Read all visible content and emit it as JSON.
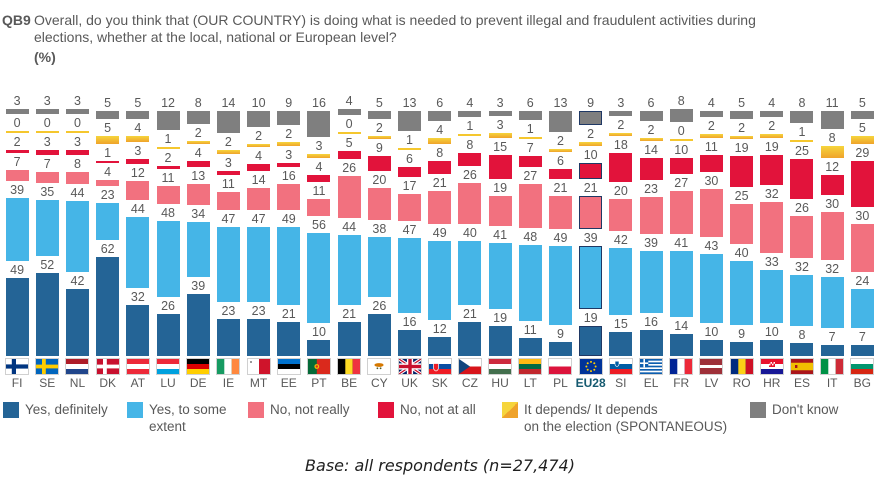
{
  "header": {
    "code": "QB9",
    "title": "Overall, do you think that (OUR COUNTRY) is doing what is needed to prevent illegal and fraudulent activities during\nelections, whether at the local, national or European level?",
    "unit": "(%)"
  },
  "footer": {
    "base_note": "Base: all respondents (n=27,474)"
  },
  "colors": {
    "yes_definitely": "#246496",
    "yes_to_some_extent": "#45B5E7",
    "no_not_really": "#F2717F",
    "no_not_at_all": "#E2133B",
    "depends_top": "#F6D53C",
    "depends_bottom": "#EFA32B",
    "dont_know": "#7F7F7F",
    "eu28_box_border": "#1F3864",
    "eu28_label": "#155A70",
    "value_label": "#595959"
  },
  "chart_data": {
    "type": "bar",
    "stacked": true,
    "unit": "%",
    "grid": false,
    "highlight_category": "EU28",
    "categories": [
      "FI",
      "SE",
      "NL",
      "DK",
      "AT",
      "LU",
      "DE",
      "IE",
      "MT",
      "EE",
      "PT",
      "BE",
      "CY",
      "UK",
      "SK",
      "CZ",
      "HU",
      "LT",
      "PL",
      "EU28",
      "SI",
      "EL",
      "FR",
      "LV",
      "RO",
      "HR",
      "ES",
      "IT",
      "BG"
    ],
    "series": [
      {
        "name": "Yes, definitely",
        "color": "#246496",
        "values": [
          49,
          52,
          42,
          62,
          32,
          26,
          39,
          23,
          23,
          21,
          10,
          21,
          26,
          16,
          12,
          21,
          19,
          11,
          9,
          19,
          15,
          16,
          14,
          10,
          9,
          10,
          8,
          7,
          7
        ]
      },
      {
        "name": "Yes, to some extent",
        "color": "#45B5E7",
        "values": [
          39,
          35,
          44,
          23,
          44,
          48,
          34,
          47,
          47,
          49,
          56,
          44,
          38,
          47,
          49,
          40,
          41,
          48,
          49,
          39,
          42,
          39,
          41,
          43,
          40,
          33,
          32,
          32,
          24
        ]
      },
      {
        "name": "No, not really",
        "color": "#F2717F",
        "values": [
          7,
          7,
          8,
          4,
          12,
          11,
          13,
          11,
          14,
          16,
          11,
          26,
          20,
          17,
          21,
          26,
          19,
          27,
          21,
          21,
          20,
          23,
          27,
          30,
          25,
          32,
          26,
          30,
          30
        ]
      },
      {
        "name": "No, not at all",
        "color": "#E2133B",
        "values": [
          2,
          3,
          3,
          1,
          3,
          2,
          4,
          3,
          4,
          3,
          4,
          5,
          9,
          6,
          8,
          8,
          15,
          7,
          6,
          10,
          18,
          14,
          10,
          11,
          19,
          19,
          25,
          12,
          29
        ]
      },
      {
        "name": "It depends/ It depends on the election (SPONTANEOUS)",
        "color": "#F2B52F",
        "values": [
          0,
          0,
          0,
          5,
          4,
          1,
          2,
          2,
          2,
          2,
          3,
          0,
          2,
          1,
          4,
          1,
          3,
          1,
          2,
          2,
          2,
          2,
          0,
          2,
          2,
          2,
          1,
          8,
          5
        ]
      },
      {
        "name": "Don't know",
        "color": "#7F7F7F",
        "values": [
          3,
          3,
          3,
          5,
          5,
          12,
          8,
          14,
          10,
          9,
          16,
          4,
          5,
          13,
          6,
          4,
          3,
          6,
          13,
          9,
          3,
          6,
          8,
          4,
          5,
          4,
          8,
          11,
          5
        ]
      }
    ],
    "legend": {
      "position": "bottom",
      "items": [
        {
          "label": "Yes, definitely",
          "color": "#246496"
        },
        {
          "label": "Yes, to some\nextent",
          "color": "#45B5E7"
        },
        {
          "label": "No, not really",
          "color": "#F2717F"
        },
        {
          "label": "No, not at all",
          "color": "#E2133B"
        },
        {
          "label": "It depends/ It depends\non the election (SPONTANEOUS)",
          "color": "#F2B52F"
        },
        {
          "label": "Don't know",
          "color": "#7F7F7F"
        }
      ]
    }
  }
}
